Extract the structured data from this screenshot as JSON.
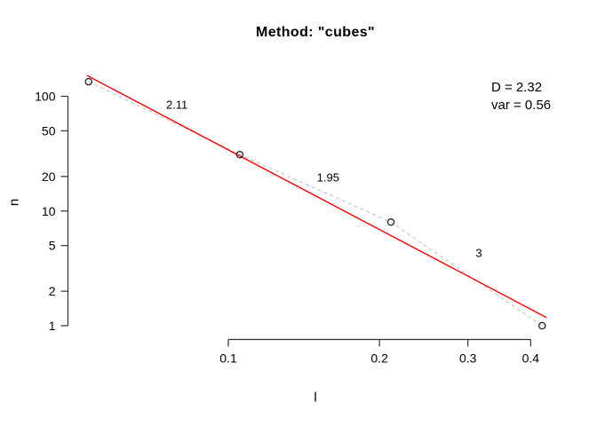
{
  "title": "Method: \"cubes\"",
  "annotation": {
    "line1": "D = 2.32",
    "line2": "var = 0.56"
  },
  "colors": {
    "background": "#ffffff",
    "text": "#000000",
    "axis": "#303030",
    "point_stroke": "#222222",
    "data_line": "#c8c8c8",
    "fit_line": "#ff0000"
  },
  "chart_data": {
    "type": "scatter",
    "title": "Method: \"cubes\"",
    "xlabel": "l",
    "ylabel": "n",
    "log_scale": {
      "x": true,
      "y": true
    },
    "grid": false,
    "x_ticks": [
      0.1,
      0.2,
      0.3,
      0.4
    ],
    "y_ticks": [
      1,
      2,
      5,
      10,
      20,
      50,
      100
    ],
    "x_range": [
      0.05,
      0.43
    ],
    "y_range": [
      1,
      150
    ],
    "points": {
      "l": [
        0.0527,
        0.1054,
        0.2108,
        0.4216
      ],
      "n": [
        134,
        31,
        8,
        1
      ]
    },
    "point_style": "open-circle",
    "data_line_style": "dashed",
    "segment_slopes": [
      2.11,
      1.95,
      3
    ],
    "slope_labels": [
      {
        "value": "2.11",
        "l": 0.079,
        "n": 84.4
      },
      {
        "value": "1.95",
        "l": 0.158,
        "n": 19.6
      },
      {
        "value": "3",
        "l": 0.3155,
        "n": 4.31
      }
    ],
    "fit": {
      "D": 2.32,
      "var": 0.56
    },
    "fit_line": {
      "l": [
        0.0523,
        0.43
      ],
      "n": [
        152,
        1.18
      ]
    }
  }
}
